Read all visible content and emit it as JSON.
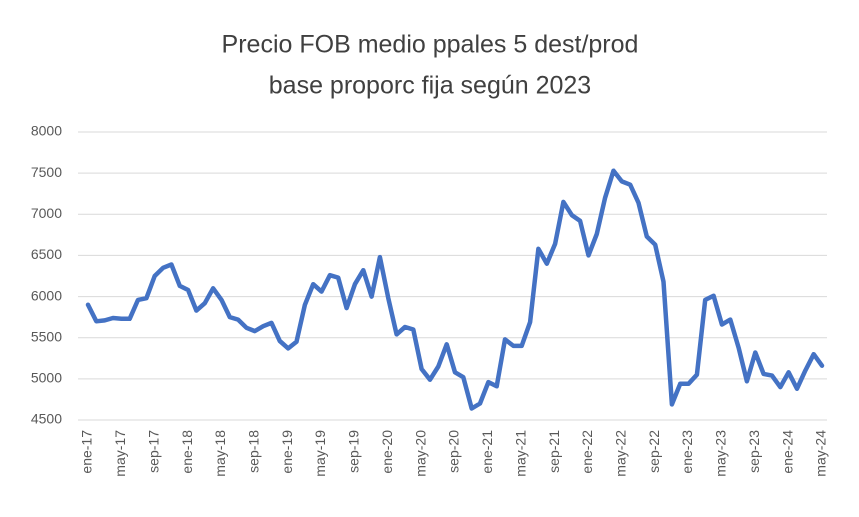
{
  "chart_data": {
    "type": "line",
    "title": "Precio FOB medio ppales 5 dest/prod",
    "subtitle": "base proporc fija según 2023",
    "categories": [
      "ene-17",
      null,
      null,
      null,
      "may-17",
      null,
      null,
      null,
      "sep-17",
      null,
      null,
      null,
      "ene-18",
      null,
      null,
      null,
      "may-18",
      null,
      null,
      null,
      "sep-18",
      null,
      null,
      null,
      "ene-19",
      null,
      null,
      null,
      "may-19",
      null,
      null,
      null,
      "sep-19",
      null,
      null,
      null,
      "ene-20",
      null,
      null,
      null,
      "may-20",
      null,
      null,
      null,
      "sep-20",
      null,
      null,
      null,
      "ene-21",
      null,
      null,
      null,
      "may-21",
      null,
      null,
      null,
      "sep-21",
      null,
      null,
      null,
      "ene-22",
      null,
      null,
      null,
      "may-22",
      null,
      null,
      null,
      "sep-22",
      null,
      null,
      null,
      "ene-23",
      null,
      null,
      null,
      "may-23",
      null,
      null,
      null,
      "sep-23",
      null,
      null,
      null,
      "ene-24",
      null,
      null,
      null,
      "may-24"
    ],
    "series": [
      {
        "name": "Precio FOB medio",
        "color": "#4472c4",
        "values": [
          5900,
          5700,
          5710,
          5740,
          5730,
          5730,
          5960,
          5980,
          6250,
          6350,
          6390,
          6130,
          6080,
          5830,
          5920,
          6100,
          5960,
          5750,
          5720,
          5620,
          5580,
          5640,
          5680,
          5460,
          5370,
          5450,
          5900,
          6150,
          6060,
          6260,
          6230,
          5860,
          6150,
          6320,
          6000,
          6480,
          5980,
          5540,
          5630,
          5600,
          5120,
          4990,
          5150,
          5420,
          5080,
          5020,
          4640,
          4700,
          4960,
          4910,
          5480,
          5400,
          5400,
          5690,
          6580,
          6400,
          6640,
          7150,
          6990,
          6920,
          6500,
          6760,
          7200,
          7530,
          7400,
          7360,
          7140,
          6730,
          6630,
          6180,
          4690,
          4940,
          4940,
          5050,
          5960,
          6010,
          5660,
          5720,
          5380,
          4970,
          5320,
          5060,
          5040,
          4900,
          5080,
          4880,
          5100,
          5300,
          5160
        ]
      }
    ],
    "ylim": [
      4500,
      8000
    ],
    "yticks": [
      4500,
      5000,
      5500,
      6000,
      6500,
      7000,
      7500,
      8000
    ],
    "grid": true
  }
}
